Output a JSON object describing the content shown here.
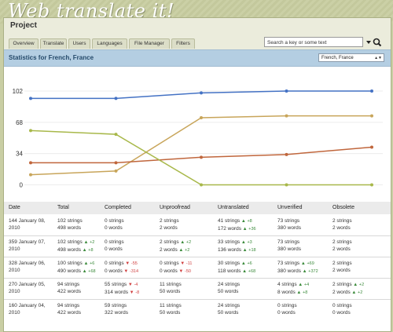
{
  "app": {
    "logo": "Web translate it!",
    "project_title": "Project"
  },
  "tabs": [
    "Overview",
    "Translate",
    "Users",
    "Languages",
    "File Manager",
    "Filters"
  ],
  "search": {
    "placeholder": "Search a key or some text"
  },
  "stats": {
    "title": "Statistics for French, France",
    "locale_selected": "French, France"
  },
  "colors": {
    "completed": "#4472c4",
    "untranslated": "#c8a55a",
    "unverified": "#c0663c",
    "unproofread": "#a8b84a"
  },
  "chart_data": {
    "type": "line",
    "x": [
      "2010-01-04",
      "2010-01-05",
      "2010-01-06",
      "2010-01-07",
      "2010-01-08"
    ],
    "yticks": [
      0,
      34,
      68,
      102
    ],
    "series": [
      {
        "key": "completed",
        "values": [
          94,
          94,
          100,
          102,
          102
        ]
      },
      {
        "key": "untranslated",
        "values": [
          11,
          15,
          73,
          75,
          75
        ]
      },
      {
        "key": "unverified",
        "values": [
          24,
          24,
          30,
          33,
          41
        ]
      },
      {
        "key": "unproofread",
        "values": [
          59,
          55,
          0,
          0,
          0
        ]
      }
    ]
  },
  "table": {
    "headers": [
      "Date",
      "Total",
      "Completed",
      "Unproofread",
      "Untranslated",
      "Unverified",
      "Obsolete"
    ],
    "rows": [
      {
        "date": [
          "144 January 08,",
          "2010"
        ],
        "total": [
          {
            "t": "102 strings"
          },
          {
            "t": "498 words"
          }
        ],
        "completed": [
          {
            "t": "0 strings"
          },
          {
            "t": "0 words"
          }
        ],
        "unproofread": [
          {
            "t": "2 strings"
          },
          {
            "t": "2 words"
          }
        ],
        "untranslated": [
          {
            "t": "41 strings",
            "d": "+8",
            "dir": "up"
          },
          {
            "t": "172 words",
            "d": "+36",
            "dir": "up"
          }
        ],
        "unverified": [
          {
            "t": "73 strings"
          },
          {
            "t": "380 words"
          }
        ],
        "obsolete": [
          {
            "t": "2 strings"
          },
          {
            "t": "2 words"
          }
        ]
      },
      {
        "date": [
          "359 January 07,",
          "2010"
        ],
        "total": [
          {
            "t": "102 strings",
            "d": "+2",
            "dir": "up"
          },
          {
            "t": "498 words",
            "d": "+8",
            "dir": "up"
          }
        ],
        "completed": [
          {
            "t": "0 strings"
          },
          {
            "t": "0 words"
          }
        ],
        "unproofread": [
          {
            "t": "2 strings",
            "d": "+2",
            "dir": "up"
          },
          {
            "t": "2 words",
            "d": "+2",
            "dir": "up"
          }
        ],
        "untranslated": [
          {
            "t": "33 strings",
            "d": "+3",
            "dir": "up"
          },
          {
            "t": "136 words",
            "d": "+18",
            "dir": "up"
          }
        ],
        "unverified": [
          {
            "t": "73 strings"
          },
          {
            "t": "380 words"
          }
        ],
        "obsolete": [
          {
            "t": "2 strings"
          },
          {
            "t": "2 words"
          }
        ]
      },
      {
        "date": [
          "328 January 06,",
          "2010"
        ],
        "total": [
          {
            "t": "100 strings",
            "d": "+6",
            "dir": "up"
          },
          {
            "t": "490 words",
            "d": "+68",
            "dir": "up"
          }
        ],
        "completed": [
          {
            "t": "0 strings",
            "d": "-55",
            "dir": "down"
          },
          {
            "t": "0 words",
            "d": "-314",
            "dir": "down"
          }
        ],
        "unproofread": [
          {
            "t": "0 strings",
            "d": "-11",
            "dir": "down"
          },
          {
            "t": "0 words",
            "d": "-50",
            "dir": "down"
          }
        ],
        "untranslated": [
          {
            "t": "30 strings",
            "d": "+6",
            "dir": "up"
          },
          {
            "t": "118 words",
            "d": "+68",
            "dir": "up"
          }
        ],
        "unverified": [
          {
            "t": "73 strings",
            "d": "+69",
            "dir": "up"
          },
          {
            "t": "380 words",
            "d": "+372",
            "dir": "up"
          }
        ],
        "obsolete": [
          {
            "t": "2 strings"
          },
          {
            "t": "2 words"
          }
        ]
      },
      {
        "date": [
          "270 January 05,",
          "2010"
        ],
        "total": [
          {
            "t": "94 strings"
          },
          {
            "t": "422 words"
          }
        ],
        "completed": [
          {
            "t": "55 strings",
            "d": "-4",
            "dir": "down"
          },
          {
            "t": "314 words",
            "d": "-8",
            "dir": "down"
          }
        ],
        "unproofread": [
          {
            "t": "11 strings"
          },
          {
            "t": "50 words"
          }
        ],
        "untranslated": [
          {
            "t": "24 strings"
          },
          {
            "t": "50 words"
          }
        ],
        "unverified": [
          {
            "t": "4 strings",
            "d": "+4",
            "dir": "up"
          },
          {
            "t": "8 words",
            "d": "+8",
            "dir": "up"
          }
        ],
        "obsolete": [
          {
            "t": "2 strings",
            "d": "+2",
            "dir": "up"
          },
          {
            "t": "2 words",
            "d": "+2",
            "dir": "up"
          }
        ]
      },
      {
        "date": [
          "160 January 04,",
          "2010"
        ],
        "total": [
          {
            "t": "94 strings"
          },
          {
            "t": "422 words"
          }
        ],
        "completed": [
          {
            "t": "59 strings"
          },
          {
            "t": "322 words"
          }
        ],
        "unproofread": [
          {
            "t": "11 strings"
          },
          {
            "t": "50 words"
          }
        ],
        "untranslated": [
          {
            "t": "24 strings"
          },
          {
            "t": "50 words"
          }
        ],
        "unverified": [
          {
            "t": "0 strings"
          },
          {
            "t": "0 words"
          }
        ],
        "obsolete": [
          {
            "t": "0 strings"
          },
          {
            "t": "0 words"
          }
        ]
      }
    ]
  }
}
